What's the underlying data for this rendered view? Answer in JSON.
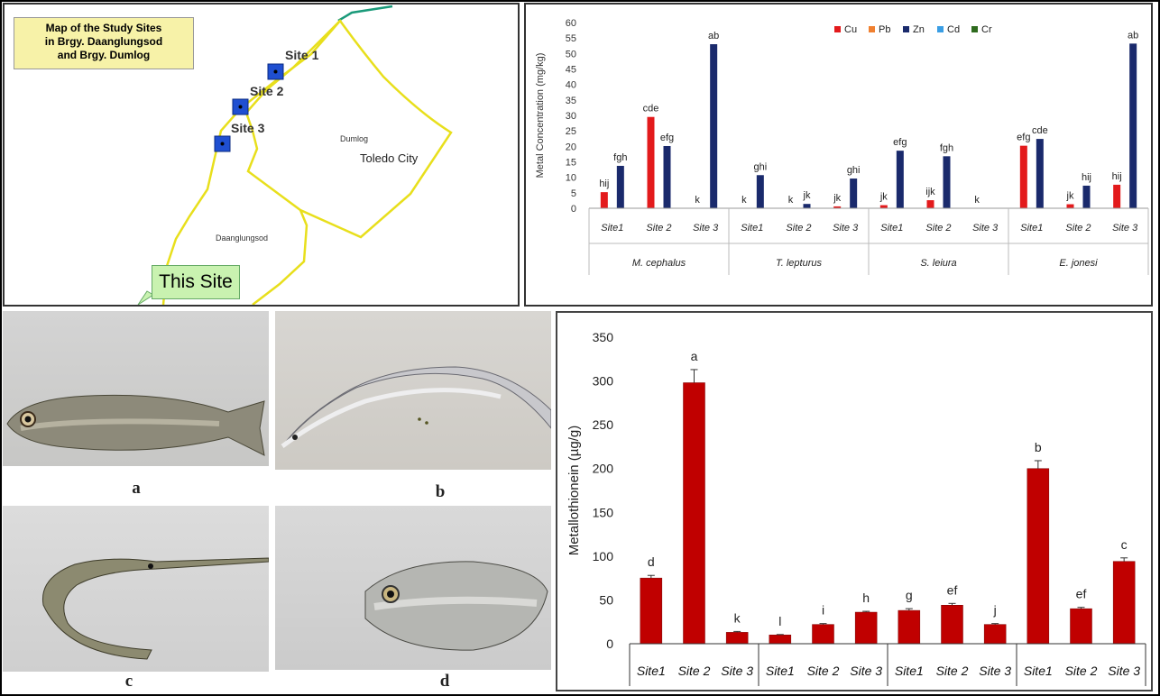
{
  "map": {
    "title_lines": [
      "Map of the Study Sites",
      "in Brgy. Daanglungsod",
      "and Brgy. Dumlog"
    ],
    "sites": [
      "Site 1",
      "Site 2",
      "Site 3"
    ],
    "labels": {
      "dumlog": "Dumlog",
      "toledo": "Toledo City",
      "daanglungsod": "Daanglungsod"
    },
    "this_site": "This Site",
    "colors": {
      "boundary": "#e8df1c",
      "site_marker": "#1f4fd1",
      "river": "#1a9a7a"
    }
  },
  "photos": {
    "labels": [
      "a",
      "b",
      "c",
      "d"
    ]
  },
  "chart_data": [
    {
      "type": "bar",
      "ylabel": "Metal Concentration (mg/kg)",
      "ylim": [
        0,
        60
      ],
      "yticks": [
        0,
        5,
        10,
        15,
        20,
        25,
        30,
        35,
        40,
        45,
        50,
        55,
        60
      ],
      "legend_position": "top-right",
      "categories": [
        "Site1",
        "Site 2",
        "Site 3",
        "Site1",
        "Site 2",
        "Site 3",
        "Site1",
        "Site 2",
        "Site 3",
        "Site1",
        "Site 2",
        "Site 3"
      ],
      "groups": [
        "M. cephalus",
        "T. lepturus",
        "S. leiura",
        "E. jonesi"
      ],
      "series": [
        {
          "name": "Cu",
          "color": "#e31a1c",
          "values": [
            5.2,
            29.5,
            0,
            0,
            0,
            0.6,
            1.0,
            2.6,
            0,
            20.2,
            1.3,
            7.6
          ]
        },
        {
          "name": "Pb",
          "color": "#f08030",
          "values": [
            0,
            0,
            0,
            0,
            0,
            0,
            0,
            0,
            0,
            0,
            0,
            0
          ]
        },
        {
          "name": "Zn",
          "color": "#1a2a6c",
          "values": [
            13.7,
            20.1,
            53.0,
            10.7,
            1.4,
            9.6,
            18.6,
            16.8,
            0,
            22.4,
            7.3,
            53.2
          ]
        },
        {
          "name": "Cd",
          "color": "#3a9ee4",
          "values": [
            0,
            0,
            0,
            0,
            0,
            0,
            0,
            0,
            0,
            0,
            0,
            0
          ]
        },
        {
          "name": "Cr",
          "color": "#2e6b1e",
          "values": [
            0,
            0,
            0,
            0,
            0,
            0,
            0,
            0,
            0,
            0,
            0,
            0
          ]
        }
      ],
      "annotations": [
        [
          "hij",
          "fgh"
        ],
        [
          "cde",
          "efg"
        ],
        [
          "k",
          "ab"
        ],
        [
          "k",
          "ghi"
        ],
        [
          "k",
          "jk"
        ],
        [
          "jk",
          "ghi"
        ],
        [
          "jk",
          "efg"
        ],
        [
          "ijk",
          "fgh"
        ],
        [
          "k",
          ""
        ],
        [
          "efg",
          "cde"
        ],
        [
          "jk",
          "hij"
        ],
        [
          "hij",
          "ab"
        ]
      ]
    },
    {
      "type": "bar",
      "ylabel": "Metallothionein (µg/g)",
      "ylim": [
        0,
        350
      ],
      "yticks": [
        0,
        50,
        100,
        150,
        200,
        250,
        300,
        350
      ],
      "categories": [
        "Site1",
        "Site 2",
        "Site 3",
        "Site1",
        "Site 2",
        "Site 3",
        "Site1",
        "Site 2",
        "Site 3",
        "Site1",
        "Site 2",
        "Site 3"
      ],
      "values": [
        75,
        298,
        13,
        10,
        22,
        36,
        38,
        44,
        22,
        200,
        40,
        94
      ],
      "errors": [
        3,
        15,
        1,
        0.5,
        1,
        1,
        2,
        2,
        1,
        9,
        1.5,
        4
      ],
      "letters": [
        "d",
        "a",
        "k",
        "l",
        "i",
        "h",
        "g",
        "ef",
        "j",
        "b",
        "ef",
        "c"
      ],
      "bar_color": "#c00000"
    }
  ]
}
